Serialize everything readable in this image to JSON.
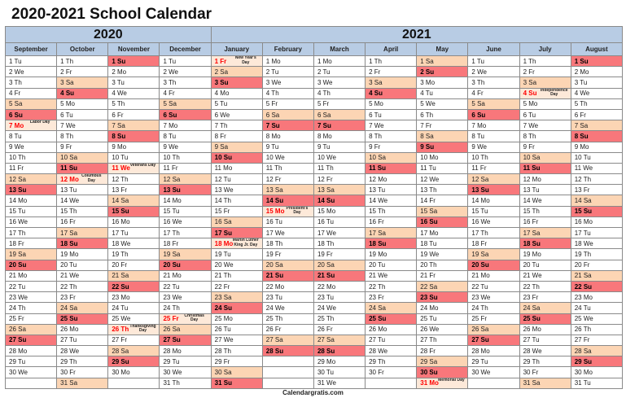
{
  "title": "2020-2021 School Calendar",
  "years": [
    {
      "label": "2020",
      "months": 4
    },
    {
      "label": "2021",
      "months": 8
    }
  ],
  "footer": "Calendargratis.com",
  "colors": {
    "header": "#b8cce4",
    "saturday": "#fcd5b4",
    "sunday": "#f8777b",
    "holiday": "#fde9d9",
    "holiday_text": "#ff0000"
  },
  "months": [
    {
      "name": "September",
      "holidays": [
        {
          "day": 7,
          "label": "Labor Day"
        }
      ],
      "days": [
        "1 Tu",
        "2 We",
        "3 Th",
        "4 Fr",
        "5 Sa",
        "6 Su",
        "7 Mo",
        "8 Tu",
        "9 We",
        "10 Th",
        "11 Fr",
        "12 Sa",
        "13 Su",
        "14 Mo",
        "15 Tu",
        "16 We",
        "17 Th",
        "18 Fr",
        "19 Sa",
        "20 Su",
        "21 Mo",
        "22 Tu",
        "23 We",
        "24 Th",
        "25 Fr",
        "26 Sa",
        "27 Su",
        "28 Mo",
        "29 Tu",
        "30 We"
      ]
    },
    {
      "name": "October",
      "holidays": [
        {
          "day": 12,
          "label": "Columbus Day"
        }
      ],
      "days": [
        "1 Th",
        "2 Fr",
        "3 Sa",
        "4 Su",
        "5 Mo",
        "6 Tu",
        "7 We",
        "8 Th",
        "9 Fr",
        "10 Sa",
        "11 Su",
        "12 Mo",
        "13 Tu",
        "14 We",
        "15 Th",
        "16 Fr",
        "17 Sa",
        "18 Su",
        "19 Mo",
        "20 Tu",
        "21 We",
        "22 Th",
        "23 Fr",
        "24 Sa",
        "25 Su",
        "26 Mo",
        "27 Tu",
        "28 We",
        "29 Th",
        "30 Fr",
        "31 Sa"
      ]
    },
    {
      "name": "November",
      "holidays": [
        {
          "day": 11,
          "label": "Veterans Day"
        },
        {
          "day": 26,
          "label": "Thanksgiving Day"
        }
      ],
      "days": [
        "1 Su",
        "2 Mo",
        "3 Tu",
        "4 We",
        "5 Th",
        "6 Fr",
        "7 Sa",
        "8 Su",
        "9 Mo",
        "10 Tu",
        "11 We",
        "12 Th",
        "13 Fr",
        "14 Sa",
        "15 Su",
        "16 Mo",
        "17 Tu",
        "18 We",
        "19 Th",
        "20 Fr",
        "21 Sa",
        "22 Su",
        "23 Mo",
        "24 Tu",
        "25 We",
        "26 Th",
        "27 Fr",
        "28 Sa",
        "29 Su",
        "30 Mo"
      ]
    },
    {
      "name": "December",
      "holidays": [
        {
          "day": 25,
          "label": "Christmas Day"
        }
      ],
      "days": [
        "1 Tu",
        "2 We",
        "3 Th",
        "4 Fr",
        "5 Sa",
        "6 Su",
        "7 Mo",
        "8 Tu",
        "9 We",
        "10 Th",
        "11 Fr",
        "12 Sa",
        "13 Su",
        "14 Mo",
        "15 Tu",
        "16 We",
        "17 Th",
        "18 Fr",
        "19 Sa",
        "20 Su",
        "21 Mo",
        "22 Tu",
        "23 We",
        "24 Th",
        "25 Fr",
        "26 Sa",
        "27 Su",
        "28 Mo",
        "29 Tu",
        "30 We",
        "31 Th"
      ]
    },
    {
      "name": "January",
      "holidays": [
        {
          "day": 1,
          "label": "New Year's Day"
        },
        {
          "day": 18,
          "label": "Martin Luther King Jr. Day"
        }
      ],
      "days": [
        "1 Fr",
        "2 Sa",
        "3 Su",
        "4 Mo",
        "5 Tu",
        "6 We",
        "7 Th",
        "8 Fr",
        "9 Sa",
        "10 Su",
        "11 Mo",
        "12 Tu",
        "13 We",
        "14 Th",
        "15 Fr",
        "16 Sa",
        "17 Su",
        "18 Mo",
        "19 Tu",
        "20 We",
        "21 Th",
        "22 Fr",
        "23 Sa",
        "24 Su",
        "25 Mo",
        "26 Tu",
        "27 We",
        "28 Th",
        "29 Fr",
        "30 Sa",
        "31 Su"
      ]
    },
    {
      "name": "February",
      "holidays": [
        {
          "day": 15,
          "label": "President's Day"
        }
      ],
      "days": [
        "1 Mo",
        "2 Tu",
        "3 We",
        "4 Th",
        "5 Fr",
        "6 Sa",
        "7 Su",
        "8 Mo",
        "9 Tu",
        "10 We",
        "11 Th",
        "12 Fr",
        "13 Sa",
        "14 Su",
        "15 Mo",
        "16 Tu",
        "17 We",
        "18 Th",
        "19 Fr",
        "20 Sa",
        "21 Su",
        "22 Mo",
        "23 Tu",
        "24 We",
        "25 Th",
        "26 Fr",
        "27 Sa",
        "28 Su"
      ]
    },
    {
      "name": "March",
      "holidays": [],
      "days": [
        "1 Mo",
        "2 Tu",
        "3 We",
        "4 Th",
        "5 Fr",
        "6 Sa",
        "7 Su",
        "8 Mo",
        "9 Tu",
        "10 We",
        "11 Th",
        "12 Fr",
        "13 Sa",
        "14 Su",
        "15 Mo",
        "16 Tu",
        "17 We",
        "18 Th",
        "19 Fr",
        "20 Sa",
        "21 Su",
        "22 Mo",
        "23 Tu",
        "24 We",
        "25 Th",
        "26 Fr",
        "27 Sa",
        "28 Su",
        "29 Mo",
        "30 Tu",
        "31 We"
      ]
    },
    {
      "name": "April",
      "holidays": [],
      "days": [
        "1 Th",
        "2 Fr",
        "3 Sa",
        "4 Su",
        "5 Mo",
        "6 Tu",
        "7 We",
        "8 Th",
        "9 Fr",
        "10 Sa",
        "11 Su",
        "12 Mo",
        "13 Tu",
        "14 We",
        "15 Th",
        "16 Fr",
        "17 Sa",
        "18 Su",
        "19 Mo",
        "20 Tu",
        "21 We",
        "22 Th",
        "23 Fr",
        "24 Sa",
        "25 Su",
        "26 Mo",
        "27 Tu",
        "28 We",
        "29 Th",
        "30 Fr"
      ]
    },
    {
      "name": "May",
      "holidays": [
        {
          "day": 31,
          "label": "Memorial Day"
        }
      ],
      "days": [
        "1 Sa",
        "2 Su",
        "3 Mo",
        "4 Tu",
        "5 We",
        "6 Th",
        "7 Fr",
        "8 Sa",
        "9 Su",
        "10 Mo",
        "11 Tu",
        "12 We",
        "13 Th",
        "14 Fr",
        "15 Sa",
        "16 Su",
        "17 Mo",
        "18 Tu",
        "19 We",
        "20 Th",
        "21 Fr",
        "22 Sa",
        "23 Su",
        "24 Mo",
        "25 Tu",
        "26 We",
        "27 Th",
        "28 Fr",
        "29 Sa",
        "30 Su",
        "31 Mo"
      ]
    },
    {
      "name": "June",
      "holidays": [],
      "days": [
        "1 Tu",
        "2 We",
        "3 Th",
        "4 Fr",
        "5 Sa",
        "6 Su",
        "7 Mo",
        "8 Tu",
        "9 We",
        "10 Th",
        "11 Fr",
        "12 Sa",
        "13 Su",
        "14 Mo",
        "15 Tu",
        "16 We",
        "17 Th",
        "18 Fr",
        "19 Sa",
        "20 Su",
        "21 Mo",
        "22 Tu",
        "23 We",
        "24 Th",
        "25 Fr",
        "26 Sa",
        "27 Su",
        "28 Mo",
        "29 Tu",
        "30 We"
      ]
    },
    {
      "name": "July",
      "holidays": [
        {
          "day": 4,
          "label": "Independence Day"
        }
      ],
      "days": [
        "1 Th",
        "2 Fr",
        "3 Sa",
        "4 Su",
        "5 Mo",
        "6 Tu",
        "7 We",
        "8 Th",
        "9 Fr",
        "10 Sa",
        "11 Su",
        "12 Mo",
        "13 Tu",
        "14 We",
        "15 Th",
        "16 Fr",
        "17 Sa",
        "18 Su",
        "19 Mo",
        "20 Tu",
        "21 We",
        "22 Th",
        "23 Fr",
        "24 Sa",
        "25 Su",
        "26 Mo",
        "27 Tu",
        "28 We",
        "29 Th",
        "30 Fr",
        "31 Sa"
      ]
    },
    {
      "name": "August",
      "holidays": [],
      "days": [
        "1 Su",
        "2 Mo",
        "3 Tu",
        "4 We",
        "5 Th",
        "6 Fr",
        "7 Sa",
        "8 Su",
        "9 Mo",
        "10 Tu",
        "11 We",
        "12 Th",
        "13 Fr",
        "14 Sa",
        "15 Su",
        "16 Mo",
        "17 Tu",
        "18 We",
        "19 Th",
        "20 Fr",
        "21 Sa",
        "22 Su",
        "23 Mo",
        "24 Tu",
        "25 We",
        "26 Th",
        "27 Fr",
        "28 Sa",
        "29 Su",
        "30 Mo",
        "31 Tu"
      ]
    }
  ]
}
